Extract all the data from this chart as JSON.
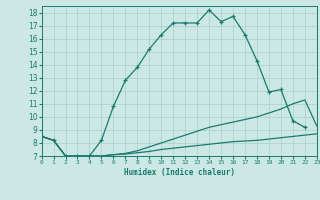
{
  "title": "",
  "xlabel": "Humidex (Indice chaleur)",
  "bg_color": "#cce8e4",
  "grid_color": "#aacfcb",
  "line_color": "#1a7a6e",
  "xlim": [
    0,
    23
  ],
  "ylim": [
    7,
    18.5
  ],
  "yticks": [
    7,
    8,
    9,
    10,
    11,
    12,
    13,
    14,
    15,
    16,
    17,
    18
  ],
  "xticks": [
    0,
    1,
    2,
    3,
    4,
    5,
    6,
    7,
    8,
    9,
    10,
    11,
    12,
    13,
    14,
    15,
    16,
    17,
    18,
    19,
    20,
    21,
    22,
    23
  ],
  "series1_x": [
    0,
    1,
    2,
    3,
    4,
    5,
    6,
    7,
    8,
    9,
    10,
    11,
    12,
    13,
    14,
    15,
    16,
    17,
    18,
    19,
    20,
    21,
    22
  ],
  "series1_y": [
    8.5,
    8.2,
    7.0,
    7.0,
    7.0,
    8.2,
    10.8,
    12.8,
    13.8,
    15.2,
    16.3,
    17.2,
    17.2,
    17.2,
    18.2,
    17.3,
    17.7,
    16.3,
    14.3,
    11.9,
    12.1,
    9.7,
    9.2
  ],
  "series2_x": [
    0,
    1,
    2,
    3,
    4,
    5,
    6,
    7,
    8,
    9,
    10,
    11,
    12,
    13,
    14,
    15,
    16,
    17,
    18,
    19,
    20,
    21,
    22,
    23
  ],
  "series2_y": [
    8.5,
    8.2,
    7.0,
    7.0,
    7.0,
    7.0,
    7.1,
    7.15,
    7.25,
    7.35,
    7.5,
    7.6,
    7.7,
    7.8,
    7.9,
    8.0,
    8.1,
    8.15,
    8.2,
    8.3,
    8.4,
    8.5,
    8.6,
    8.7
  ],
  "series3_x": [
    0,
    1,
    2,
    3,
    4,
    5,
    6,
    7,
    8,
    9,
    10,
    11,
    12,
    13,
    14,
    15,
    16,
    17,
    18,
    19,
    20,
    21,
    22,
    23
  ],
  "series3_y": [
    8.5,
    8.2,
    7.0,
    7.0,
    7.0,
    7.0,
    7.1,
    7.2,
    7.4,
    7.7,
    8.0,
    8.3,
    8.6,
    8.9,
    9.2,
    9.4,
    9.6,
    9.8,
    10.0,
    10.3,
    10.6,
    11.0,
    11.3,
    9.3
  ]
}
